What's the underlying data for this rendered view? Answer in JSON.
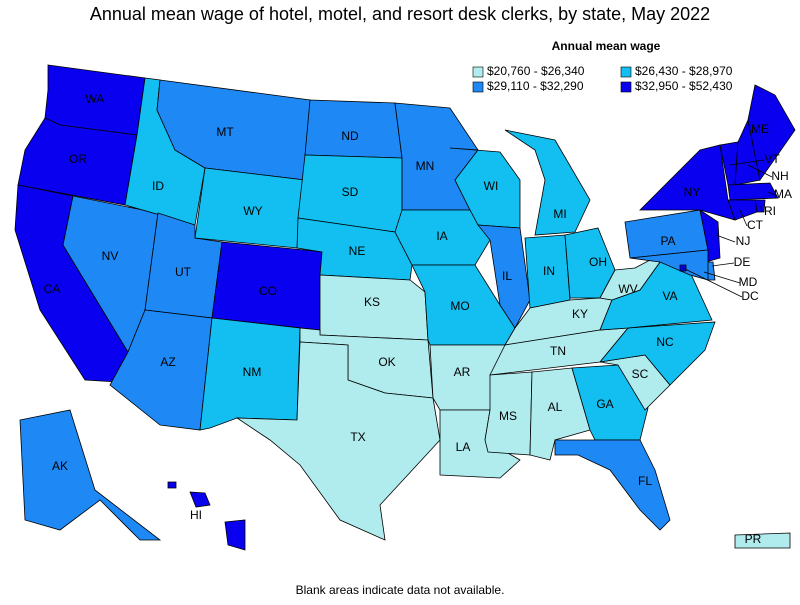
{
  "title": "Annual mean wage of hotel, motel, and resort desk clerks, by state, May 2022",
  "legend": {
    "title": "Annual mean wage",
    "items": [
      {
        "label": "$20,760 - $26,340",
        "color": "#b0ecee"
      },
      {
        "label": "$26,430 - $28,970",
        "color": "#12bff0"
      },
      {
        "label": "$29,110 - $32,290",
        "color": "#1e88f5"
      },
      {
        "label": "$32,950 - $52,430",
        "color": "#0a00f0"
      }
    ]
  },
  "states": [
    {
      "abbr": "WA",
      "bin": 3
    },
    {
      "abbr": "OR",
      "bin": 3
    },
    {
      "abbr": "CA",
      "bin": 3
    },
    {
      "abbr": "NV",
      "bin": 2
    },
    {
      "abbr": "ID",
      "bin": 1
    },
    {
      "abbr": "MT",
      "bin": 2
    },
    {
      "abbr": "WY",
      "bin": 1
    },
    {
      "abbr": "UT",
      "bin": 2
    },
    {
      "abbr": "AZ",
      "bin": 2
    },
    {
      "abbr": "CO",
      "bin": 3
    },
    {
      "abbr": "NM",
      "bin": 1
    },
    {
      "abbr": "ND",
      "bin": 2
    },
    {
      "abbr": "SD",
      "bin": 1
    },
    {
      "abbr": "NE",
      "bin": 1
    },
    {
      "abbr": "KS",
      "bin": 0
    },
    {
      "abbr": "OK",
      "bin": 0
    },
    {
      "abbr": "TX",
      "bin": 0
    },
    {
      "abbr": "MN",
      "bin": 2
    },
    {
      "abbr": "IA",
      "bin": 1
    },
    {
      "abbr": "MO",
      "bin": 1
    },
    {
      "abbr": "AR",
      "bin": 0
    },
    {
      "abbr": "LA",
      "bin": 0
    },
    {
      "abbr": "WI",
      "bin": 1
    },
    {
      "abbr": "IL",
      "bin": 2
    },
    {
      "abbr": "MI",
      "bin": 1
    },
    {
      "abbr": "IN",
      "bin": 1
    },
    {
      "abbr": "OH",
      "bin": 1
    },
    {
      "abbr": "KY",
      "bin": 0
    },
    {
      "abbr": "TN",
      "bin": 0
    },
    {
      "abbr": "MS",
      "bin": 0
    },
    {
      "abbr": "AL",
      "bin": 0
    },
    {
      "abbr": "GA",
      "bin": 1
    },
    {
      "abbr": "FL",
      "bin": 2
    },
    {
      "abbr": "SC",
      "bin": 0
    },
    {
      "abbr": "NC",
      "bin": 1
    },
    {
      "abbr": "VA",
      "bin": 1
    },
    {
      "abbr": "WV",
      "bin": 0
    },
    {
      "abbr": "PA",
      "bin": 2
    },
    {
      "abbr": "NY",
      "bin": 3
    },
    {
      "abbr": "NJ",
      "bin": 3
    },
    {
      "abbr": "DE",
      "bin": 2
    },
    {
      "abbr": "MD",
      "bin": 2
    },
    {
      "abbr": "DC",
      "bin": 3
    },
    {
      "abbr": "VT",
      "bin": 3
    },
    {
      "abbr": "NH",
      "bin": 3
    },
    {
      "abbr": "ME",
      "bin": 3
    },
    {
      "abbr": "MA",
      "bin": 3
    },
    {
      "abbr": "RI",
      "bin": 3
    },
    {
      "abbr": "CT",
      "bin": 3
    },
    {
      "abbr": "AK",
      "bin": 2
    },
    {
      "abbr": "HI",
      "bin": 3
    },
    {
      "abbr": "PR",
      "bin": 0
    }
  ],
  "footnote": "Blank areas indicate data not available."
}
